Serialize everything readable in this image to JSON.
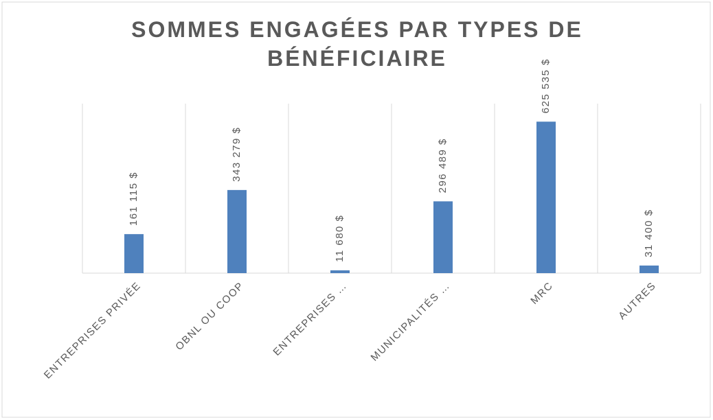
{
  "chart_data": {
    "type": "bar",
    "title": "SOMMES ENGAGÉES PAR TYPES DE BÉNÉFICIAIRE",
    "categories": [
      "ENTREPRISES PRIVÉE",
      "OBNL OU COOP",
      "ENTREPRISES …",
      "MUNICIPALITÉS …",
      "MRC",
      "AUTRES"
    ],
    "values": [
      161115,
      343279,
      11680,
      296489,
      625535,
      31400
    ],
    "value_labels": [
      "161 115 $",
      "343 279 $",
      "11 680 $",
      "296 489 $",
      "625 535 $",
      "31 400 $"
    ],
    "color": "#4f81bd",
    "ylim": [
      0,
      700000
    ],
    "grid": true
  }
}
